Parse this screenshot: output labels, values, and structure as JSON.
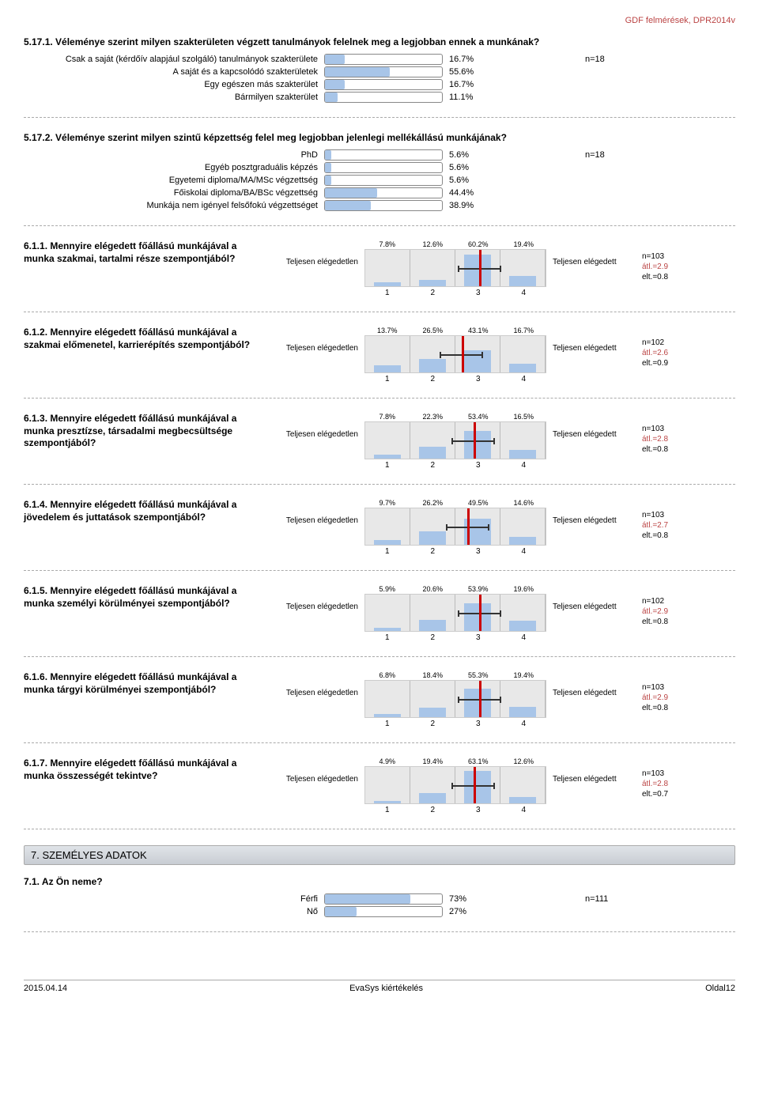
{
  "header": {
    "doc_ref": "GDF felmérések, DPR2014v"
  },
  "q1": {
    "title": "5.17.1. Véleménye szerint milyen szakterületen végzett tanulmányok felelnek meg a legjobban ennek a munkának?",
    "note": "n=18",
    "bar_fill": "#a8c5e8",
    "rows": [
      {
        "label": "Csak a saját (kérdőív alapjául szolgáló) tanulmányok szakterülete",
        "val": "16.7%",
        "pct": 16.7
      },
      {
        "label": "A saját és a kapcsolódó szakterületek",
        "val": "55.6%",
        "pct": 55.6
      },
      {
        "label": "Egy egészen más szakterület",
        "val": "16.7%",
        "pct": 16.7
      },
      {
        "label": "Bármilyen szakterület",
        "val": "11.1%",
        "pct": 11.1
      }
    ]
  },
  "q2": {
    "title": "5.17.2. Véleménye szerint milyen szintű képzettség felel meg legjobban jelenlegi mellékállású munkájának?",
    "note": "n=18",
    "bar_fill": "#a8c5e8",
    "rows": [
      {
        "label": "PhD",
        "val": "5.6%",
        "pct": 5.6
      },
      {
        "label": "Egyéb posztgraduális képzés",
        "val": "5.6%",
        "pct": 5.6
      },
      {
        "label": "Egyetemi diploma/MA/MSc végzettség",
        "val": "5.6%",
        "pct": 5.6
      },
      {
        "label": "Főiskolai diploma/BA/BSc végzettség",
        "val": "44.4%",
        "pct": 44.4
      },
      {
        "label": "Munkája nem igényel felsőfokú végzettséget",
        "val": "38.9%",
        "pct": 38.9
      }
    ]
  },
  "likert_common": {
    "left_label": "Teljesen elégedetlen",
    "right_label": "Teljesen elégedett",
    "axis": [
      "1",
      "2",
      "3",
      "4"
    ],
    "bar_color": "#a8c5e8",
    "bg_color": "#e8e8e8",
    "mean_color": "#c00"
  },
  "likerts": [
    {
      "title": "6.1.1. Mennyire elégedett főállású munkájával a munka szakmai, tartalmi része szempontjából?",
      "pcts": [
        "7.8%",
        "12.6%",
        "60.2%",
        "19.4%"
      ],
      "vals": [
        7.8,
        12.6,
        60.2,
        19.4
      ],
      "mean": 2.9,
      "n": "n=103",
      "atl": "átl.=2.9",
      "elt": "elt.=0.8"
    },
    {
      "title": "6.1.2. Mennyire elégedett főállású munkájával a szakmai előmenetel, karrierépítés szempontjából?",
      "pcts": [
        "13.7%",
        "26.5%",
        "43.1%",
        "16.7%"
      ],
      "vals": [
        13.7,
        26.5,
        43.1,
        16.7
      ],
      "mean": 2.6,
      "n": "n=102",
      "atl": "átl.=2.6",
      "elt": "elt.=0.9"
    },
    {
      "title": "6.1.3. Mennyire elégedett főállású munkájával a munka presztízse, társadalmi megbecsültsége szempontjából?",
      "pcts": [
        "7.8%",
        "22.3%",
        "53.4%",
        "16.5%"
      ],
      "vals": [
        7.8,
        22.3,
        53.4,
        16.5
      ],
      "mean": 2.8,
      "n": "n=103",
      "atl": "átl.=2.8",
      "elt": "elt.=0.8"
    },
    {
      "title": "6.1.4. Mennyire elégedett főállású munkájával a jövedelem és juttatások szempontjából?",
      "pcts": [
        "9.7%",
        "26.2%",
        "49.5%",
        "14.6%"
      ],
      "vals": [
        9.7,
        26.2,
        49.5,
        14.6
      ],
      "mean": 2.7,
      "n": "n=103",
      "atl": "átl.=2.7",
      "elt": "elt.=0.8"
    },
    {
      "title": "6.1.5. Mennyire elégedett főállású munkájával a munka személyi körülményei szempontjából?",
      "pcts": [
        "5.9%",
        "20.6%",
        "53.9%",
        "19.6%"
      ],
      "vals": [
        5.9,
        20.6,
        53.9,
        19.6
      ],
      "mean": 2.9,
      "n": "n=102",
      "atl": "átl.=2.9",
      "elt": "elt.=0.8"
    },
    {
      "title": "6.1.6. Mennyire elégedett főállású munkájával a munka tárgyi körülményei szempontjából?",
      "pcts": [
        "6.8%",
        "18.4%",
        "55.3%",
        "19.4%"
      ],
      "vals": [
        6.8,
        18.4,
        55.3,
        19.4
      ],
      "mean": 2.9,
      "n": "n=103",
      "atl": "átl.=2.9",
      "elt": "elt.=0.8"
    },
    {
      "title": "6.1.7. Mennyire elégedett főállású munkájával a munka összességét tekintve?",
      "pcts": [
        "4.9%",
        "19.4%",
        "63.1%",
        "12.6%"
      ],
      "vals": [
        4.9,
        19.4,
        63.1,
        12.6
      ],
      "mean": 2.8,
      "n": "n=103",
      "atl": "átl.=2.8",
      "elt": "elt.=0.7"
    }
  ],
  "section7": {
    "head": "7. SZEMÉLYES ADATOK"
  },
  "q71": {
    "title": "7.1. Az Ön neme?",
    "note": "n=111",
    "bar_fill": "#a8c5e8",
    "rows": [
      {
        "label": "Férfi",
        "val": "73%",
        "pct": 73
      },
      {
        "label": "Nő",
        "val": "27%",
        "pct": 27
      }
    ]
  },
  "footer": {
    "date": "2015.04.14",
    "center": "EvaSys kiértékelés",
    "page": "Oldal12"
  }
}
